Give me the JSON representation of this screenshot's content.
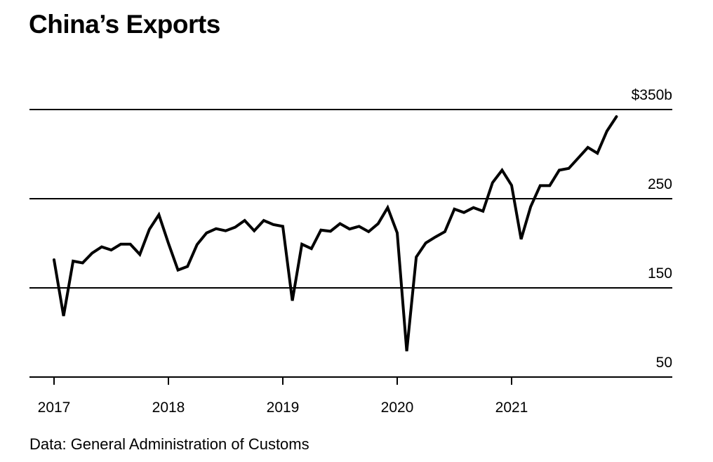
{
  "chart_data": {
    "type": "line",
    "title": "China’s Exports",
    "source": "Data: General Administration of Customs",
    "xlabel": "",
    "ylabel": "",
    "ylim": [
      50,
      350
    ],
    "y_ticks": [
      350,
      250,
      150,
      50
    ],
    "y_tick_labels": [
      "$350b",
      "250",
      "150",
      "50"
    ],
    "x_ticks": [
      2017,
      2018,
      2019,
      2020,
      2021
    ],
    "x_tick_labels": [
      "2017",
      "2018",
      "2019",
      "2020",
      "2021"
    ],
    "grid": true,
    "series": [
      {
        "name": "China exports (monthly, $b)",
        "color": "#000000",
        "start": "2017-01",
        "frequency": "monthly",
        "values": [
          181.5,
          118.5,
          180,
          178,
          189,
          196,
          192.5,
          199,
          199,
          187.5,
          215.6,
          232,
          200,
          170,
          174,
          198.5,
          211.6,
          216.4,
          214,
          218,
          225.6,
          214,
          225.6,
          221,
          219,
          135.6,
          199,
          194,
          214.8,
          213.5,
          222,
          216,
          219,
          213,
          222,
          240,
          211.7,
          79,
          184.6,
          200.4,
          207,
          213,
          238.4,
          234.5,
          240,
          236,
          268,
          282,
          265,
          204.6,
          241,
          264.7,
          264.7,
          282,
          284,
          295.7,
          307.5,
          301,
          325.8,
          342
        ]
      }
    ]
  }
}
